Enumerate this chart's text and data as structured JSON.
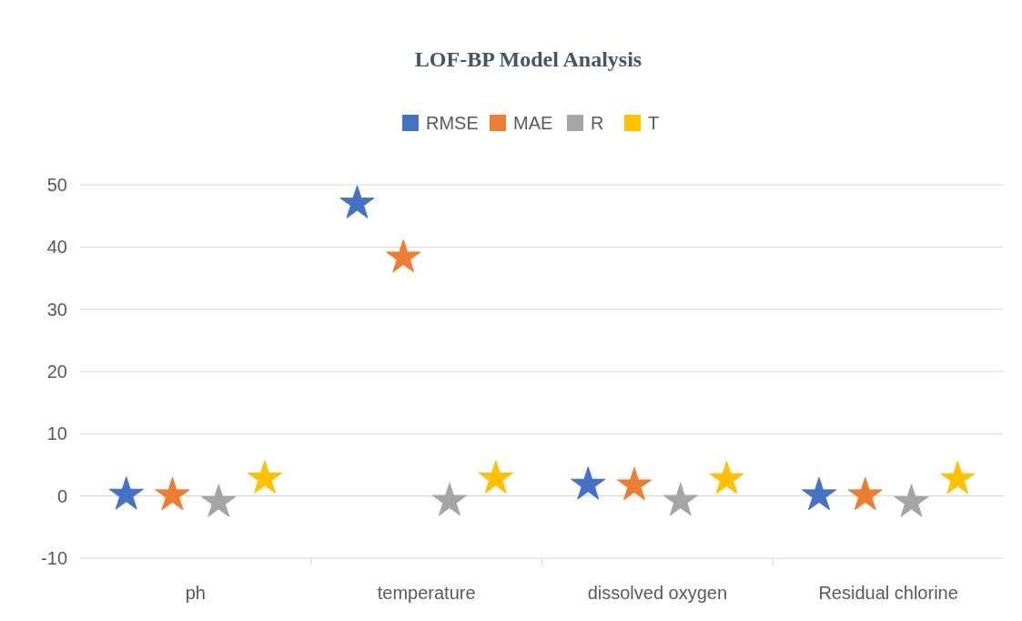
{
  "chart_data": {
    "type": "scatter",
    "title": "LOF-BP Model Analysis",
    "categories": [
      "ph",
      "temperature",
      "dissolved oxygen",
      "Residual chlorine"
    ],
    "series": [
      {
        "name": "RMSE",
        "color": "#4472c4",
        "values": [
          0.2,
          47,
          1.8,
          0.1
        ]
      },
      {
        "name": "MAE",
        "color": "#ed7d31",
        "values": [
          0.1,
          38.3,
          1.7,
          0.1
        ]
      },
      {
        "name": "R",
        "color": "#a5a5a5",
        "values": [
          -1,
          -0.8,
          -0.8,
          -1
        ]
      },
      {
        "name": "T",
        "color": "#ffc000",
        "values": [
          2.8,
          2.8,
          2.7,
          2.7
        ]
      }
    ],
    "ylim": [
      -10,
      50
    ],
    "yticks": [
      -10,
      0,
      10,
      20,
      30,
      40,
      50
    ],
    "grid": "y",
    "legend": "top",
    "marker": "star"
  }
}
